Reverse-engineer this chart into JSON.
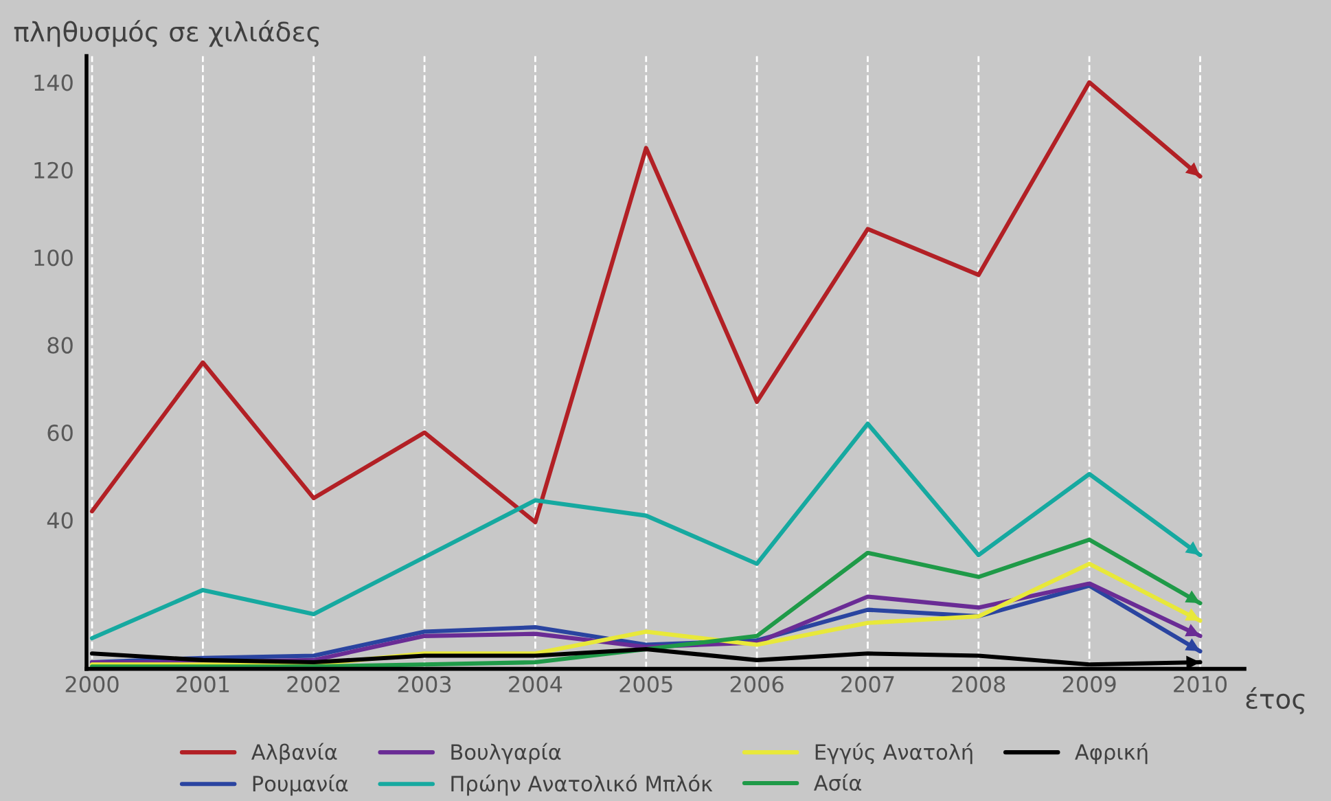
{
  "chart_data": {
    "type": "line",
    "ylabel": "πληθυσμός σε χιλιάδες",
    "xlabel": "έτος",
    "categories": [
      "2000",
      "2001",
      "2002",
      "2003",
      "2004",
      "2005",
      "2006",
      "2007",
      "2008",
      "2009",
      "2010"
    ],
    "series": [
      {
        "name": "Αλβανία",
        "color": "#b22025",
        "values": [
          42,
          76,
          45,
          60,
          39.5,
          125,
          67,
          106.5,
          96,
          140,
          118.5
        ]
      },
      {
        "name": "Ρουμανία",
        "color": "#2a44a0",
        "values": [
          7.5,
          8.5,
          9,
          14.5,
          15.5,
          11.5,
          12.5,
          19.5,
          18,
          25,
          10
        ]
      },
      {
        "name": "Βουλγαρία",
        "color": "#6a2c95",
        "values": [
          7.5,
          7.5,
          8,
          13.5,
          14,
          11,
          12,
          22.5,
          20,
          25.5,
          13.5
        ]
      },
      {
        "name": "Πρώην Ανατολικό Μπλόκ",
        "color": "#16a9a0",
        "values": [
          13,
          24,
          18.5,
          31.5,
          44.5,
          41,
          30,
          62,
          32,
          50.5,
          32
        ]
      },
      {
        "name": "Εγγύς Ανατολή",
        "color": "#e8e83a",
        "values": [
          7,
          7,
          7,
          9.5,
          9.5,
          14.5,
          11.5,
          16.5,
          18,
          30,
          17
        ]
      },
      {
        "name": "Ασία",
        "color": "#1f9a48",
        "values": [
          6.5,
          6.5,
          6.5,
          7,
          7.5,
          10.5,
          13.5,
          32.5,
          27,
          35.5,
          21
        ]
      },
      {
        "name": "Αφρική",
        "color": "#000000",
        "values": [
          9.5,
          8,
          7.5,
          9,
          9,
          10.5,
          8,
          9.5,
          9,
          7,
          7.5
        ]
      }
    ],
    "ylim": [
      6,
      146
    ],
    "yticks": [
      40,
      60,
      80,
      100,
      120,
      140
    ],
    "grid": "x",
    "legend": "bottom"
  }
}
